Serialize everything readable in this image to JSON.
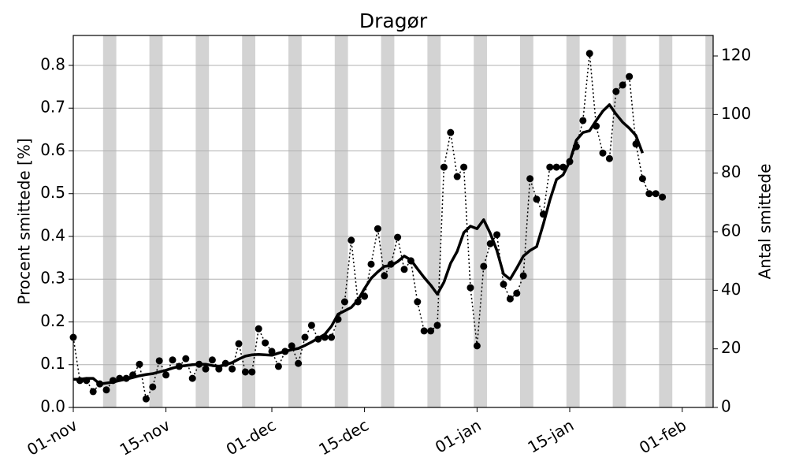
{
  "chart_data": {
    "type": "line",
    "title": "Dragør",
    "ylabel": "Procent smittede [%]",
    "y2label": "Antal smittede",
    "categories": [
      "01-nov",
      null,
      null,
      null,
      null,
      null,
      null,
      null,
      null,
      null,
      null,
      null,
      null,
      null,
      "15-nov",
      null,
      null,
      null,
      null,
      null,
      null,
      null,
      null,
      null,
      null,
      null,
      null,
      null,
      null,
      null,
      "01-dec",
      null,
      null,
      null,
      null,
      null,
      null,
      null,
      null,
      null,
      null,
      null,
      null,
      null,
      "15-dec",
      null,
      null,
      null,
      null,
      null,
      null,
      null,
      null,
      null,
      null,
      null,
      null,
      null,
      null,
      null,
      null,
      "01-jan",
      null,
      null,
      null,
      null,
      null,
      null,
      null,
      null,
      null,
      null,
      null,
      null,
      null,
      "15-jan",
      null,
      null,
      null,
      null,
      null,
      null,
      null,
      null,
      null,
      null,
      null,
      null,
      null,
      null,
      null,
      null,
      "01-feb",
      null,
      null,
      null,
      null
    ],
    "series": [
      {
        "color": "#000000",
        "style": "dotted-markers",
        "values": [
          0.164,
          0.063,
          0.063,
          0.037,
          0.055,
          0.041,
          0.063,
          0.068,
          0.068,
          0.076,
          0.101,
          0.02,
          0.048,
          0.109,
          0.076,
          0.111,
          0.096,
          0.114,
          0.068,
          0.101,
          0.09,
          0.111,
          0.09,
          0.103,
          0.09,
          0.149,
          0.083,
          0.083,
          0.184,
          0.151,
          0.131,
          0.096,
          0.131,
          0.144,
          0.103,
          0.164,
          0.192,
          0.16,
          0.164,
          0.164,
          0.206,
          0.247,
          0.391,
          0.247,
          0.26,
          0.335,
          0.418,
          0.308,
          0.335,
          0.398,
          0.323,
          0.343,
          0.247,
          0.179,
          0.179,
          0.192,
          0.562,
          0.643,
          0.54,
          0.562,
          0.28,
          0.144,
          0.33,
          0.383,
          0.404,
          0.288,
          0.254,
          0.267,
          0.308,
          0.535,
          0.487,
          0.452,
          0.562,
          0.562,
          0.562,
          0.575,
          0.61,
          0.671,
          0.828,
          0.658,
          0.595,
          0.582,
          0.739,
          0.754,
          0.774,
          0.616,
          0.535,
          0.5,
          0.5,
          0.492,
          null,
          null,
          null,
          null,
          null,
          null,
          null
        ]
      },
      {
        "color": "#000000",
        "style": "solid",
        "values": [
          0.066,
          0.066,
          0.068,
          0.068,
          0.055,
          0.057,
          0.059,
          0.063,
          0.066,
          0.07,
          0.074,
          0.077,
          0.079,
          0.083,
          0.087,
          0.092,
          0.096,
          0.098,
          0.1,
          0.101,
          0.101,
          0.098,
          0.096,
          0.1,
          0.105,
          0.113,
          0.12,
          0.123,
          0.124,
          0.123,
          0.122,
          0.127,
          0.131,
          0.135,
          0.138,
          0.145,
          0.153,
          0.162,
          0.171,
          0.19,
          0.218,
          0.226,
          0.234,
          0.251,
          0.278,
          0.302,
          0.317,
          0.33,
          0.332,
          0.341,
          0.354,
          0.345,
          0.324,
          0.304,
          0.286,
          0.265,
          0.293,
          0.337,
          0.365,
          0.409,
          0.424,
          0.418,
          0.439,
          0.407,
          0.367,
          0.312,
          0.3,
          0.326,
          0.354,
          0.367,
          0.376,
          0.428,
          0.485,
          0.533,
          0.544,
          0.575,
          0.625,
          0.643,
          0.647,
          0.671,
          0.693,
          0.708,
          0.686,
          0.667,
          0.653,
          0.636,
          0.595,
          null,
          null,
          null,
          null,
          null,
          null,
          null,
          null,
          null,
          null
        ]
      }
    ],
    "ylim": [
      0,
      0.87
    ],
    "yticks": [
      {
        "value": 0,
        "label": "0.0"
      },
      0.1,
      0.2,
      0.3,
      0.4,
      0.5,
      0.6,
      0.7,
      0.8
    ],
    "y2lim": [
      0,
      127
    ],
    "y2ticks": [
      0,
      20,
      40,
      60,
      80,
      100,
      120
    ],
    "grid": true,
    "shading": {
      "color": "#d3d3d3",
      "spans": [
        [
          4.5,
          6.5
        ],
        [
          11.5,
          13.5
        ],
        [
          18.5,
          20.5
        ],
        [
          25.5,
          27.5
        ],
        [
          32.5,
          34.5
        ],
        [
          39.5,
          41.5
        ],
        [
          46.5,
          48.5
        ],
        [
          53.5,
          55.5
        ],
        [
          60.5,
          62.5
        ],
        [
          67.5,
          69.5
        ],
        [
          74.5,
          76.5
        ],
        [
          81.5,
          83.5
        ],
        [
          88.5,
          90.5
        ],
        [
          95.5,
          97.5
        ]
      ]
    }
  }
}
